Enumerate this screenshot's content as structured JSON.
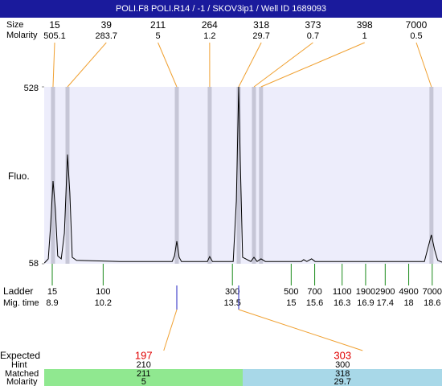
{
  "header": {
    "title": "POLI.F8  POLI.R14 / -1 / SKOV3ip1 / Well ID 1689093"
  },
  "chart_data": {
    "type": "electropherogram",
    "y_label": "Fluo.",
    "size_label": "Size",
    "molarity_label": "Molarity",
    "xlim": [
      8.695,
      18.85
    ],
    "ylim": [
      58,
      528
    ],
    "yticks": [
      58,
      528
    ],
    "peaks": [
      {
        "size": 15,
        "molarity": 505.1,
        "time": 8.92
      },
      {
        "size": 39,
        "molarity": 283.7,
        "time": 9.29
      },
      {
        "size": 211,
        "molarity": 5,
        "time": 12.08
      },
      {
        "size": 264,
        "molarity": 1.2,
        "time": 12.92
      },
      {
        "size": 318,
        "molarity": 29.7,
        "time": 13.66
      },
      {
        "size": 373,
        "molarity": 0.7,
        "time": 14.05
      },
      {
        "size": 398,
        "molarity": 1,
        "time": 14.23
      },
      {
        "size": 7000,
        "molarity": 0.5,
        "time": 18.58
      }
    ],
    "trace": {
      "x": [
        8.7,
        8.8,
        8.86,
        8.92,
        8.98,
        9.04,
        9.13,
        9.21,
        9.29,
        9.35,
        9.41,
        9.52,
        10.64,
        11.96,
        12.02,
        12.08,
        12.14,
        12.2,
        12.86,
        12.92,
        12.99,
        13.52,
        13.6,
        13.66,
        13.7,
        13.76,
        13.97,
        14.05,
        14.13,
        14.23,
        14.34,
        15.26,
        15.32,
        15.4,
        15.52,
        15.61,
        18.4,
        18.48,
        18.58,
        18.66,
        18.74,
        18.85
      ],
      "y": [
        60,
        71,
        161,
        278,
        203,
        79,
        71,
        139,
        348,
        246,
        75,
        67,
        64,
        64,
        79,
        118,
        75,
        64,
        64,
        77,
        64,
        64,
        225,
        528,
        331,
        75,
        64,
        75,
        64,
        71,
        64,
        64,
        69,
        64,
        71,
        64,
        64,
        96,
        135,
        96,
        67,
        62
      ]
    },
    "ladder": {
      "label": "Ladder",
      "time_label": "Mig. time",
      "sizes": [
        15,
        100,
        300,
        500,
        700,
        1100,
        1900,
        2900,
        4900,
        7000
      ],
      "times": [
        8.9,
        10.2,
        13.5,
        15,
        15.6,
        16.3,
        16.9,
        17.4,
        18,
        18.6
      ]
    },
    "match_table": {
      "row_labels": [
        "Expected",
        "Hint",
        "Matched",
        "Molarity"
      ],
      "columns": [
        {
          "expected": 197,
          "hint": 210,
          "matched": 211,
          "molarity": 5
        },
        {
          "expected": 303,
          "hint": 300,
          "matched": 318,
          "molarity": 29.7
        }
      ]
    }
  }
}
